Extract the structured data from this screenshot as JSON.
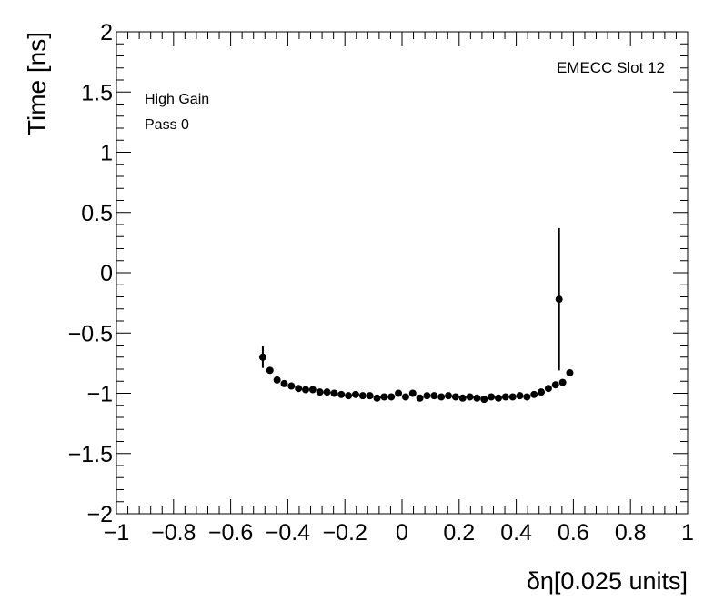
{
  "chart_data": {
    "type": "scatter",
    "xlabel": "δη[0.025 units]",
    "ylabel": "Time [ns]",
    "xlim": [
      -1,
      1
    ],
    "ylim": [
      -2,
      2
    ],
    "x_ticks": [
      "−1",
      "−0.8",
      "−0.6",
      "−0.4",
      "−0.2",
      "0",
      "0.2",
      "0.4",
      "0.6",
      "0.8",
      "1"
    ],
    "y_ticks": [
      "−2",
      "−1.5",
      "−1",
      "−0.5",
      "0",
      "0.5",
      "1",
      "1.5",
      "2"
    ],
    "annotations": {
      "slot": "EMECC Slot 12",
      "gain": "High Gain",
      "pass": "Pass 0"
    },
    "grid": false,
    "marker_color": "#000000",
    "points": [
      {
        "x": -0.4875,
        "y": -0.7,
        "err": 0.09
      },
      {
        "x": -0.4625,
        "y": -0.81,
        "err": 0.02
      },
      {
        "x": -0.4375,
        "y": -0.89,
        "err": 0.02
      },
      {
        "x": -0.4125,
        "y": -0.92,
        "err": 0.02
      },
      {
        "x": -0.3875,
        "y": -0.94,
        "err": 0.02
      },
      {
        "x": -0.3625,
        "y": -0.96,
        "err": 0.02
      },
      {
        "x": -0.3375,
        "y": -0.97,
        "err": 0.02
      },
      {
        "x": -0.3125,
        "y": -0.97,
        "err": 0.02
      },
      {
        "x": -0.2875,
        "y": -0.99,
        "err": 0.02
      },
      {
        "x": -0.2625,
        "y": -0.99,
        "err": 0.02
      },
      {
        "x": -0.2375,
        "y": -1.0,
        "err": 0.02
      },
      {
        "x": -0.2125,
        "y": -1.01,
        "err": 0.02
      },
      {
        "x": -0.1875,
        "y": -1.02,
        "err": 0.02
      },
      {
        "x": -0.1625,
        "y": -1.01,
        "err": 0.02
      },
      {
        "x": -0.1375,
        "y": -1.02,
        "err": 0.02
      },
      {
        "x": -0.1125,
        "y": -1.02,
        "err": 0.02
      },
      {
        "x": -0.0875,
        "y": -1.04,
        "err": 0.02
      },
      {
        "x": -0.0625,
        "y": -1.03,
        "err": 0.02
      },
      {
        "x": -0.0375,
        "y": -1.03,
        "err": 0.02
      },
      {
        "x": -0.0125,
        "y": -1.0,
        "err": 0.02
      },
      {
        "x": 0.0125,
        "y": -1.03,
        "err": 0.02
      },
      {
        "x": 0.0375,
        "y": -1.0,
        "err": 0.02
      },
      {
        "x": 0.0625,
        "y": -1.04,
        "err": 0.02
      },
      {
        "x": 0.0875,
        "y": -1.02,
        "err": 0.02
      },
      {
        "x": 0.1125,
        "y": -1.02,
        "err": 0.02
      },
      {
        "x": 0.1375,
        "y": -1.03,
        "err": 0.02
      },
      {
        "x": 0.1625,
        "y": -1.02,
        "err": 0.02
      },
      {
        "x": 0.1875,
        "y": -1.03,
        "err": 0.02
      },
      {
        "x": 0.2125,
        "y": -1.04,
        "err": 0.02
      },
      {
        "x": 0.2375,
        "y": -1.03,
        "err": 0.02
      },
      {
        "x": 0.2625,
        "y": -1.04,
        "err": 0.02
      },
      {
        "x": 0.2875,
        "y": -1.05,
        "err": 0.02
      },
      {
        "x": 0.3125,
        "y": -1.03,
        "err": 0.02
      },
      {
        "x": 0.3375,
        "y": -1.04,
        "err": 0.02
      },
      {
        "x": 0.3625,
        "y": -1.03,
        "err": 0.02
      },
      {
        "x": 0.3875,
        "y": -1.03,
        "err": 0.02
      },
      {
        "x": 0.4125,
        "y": -1.02,
        "err": 0.02
      },
      {
        "x": 0.4375,
        "y": -1.03,
        "err": 0.02
      },
      {
        "x": 0.4625,
        "y": -1.01,
        "err": 0.02
      },
      {
        "x": 0.4875,
        "y": -0.99,
        "err": 0.02
      },
      {
        "x": 0.5125,
        "y": -0.96,
        "err": 0.02
      },
      {
        "x": 0.5375,
        "y": -0.93,
        "err": 0.02
      },
      {
        "x": 0.5625,
        "y": -0.91,
        "err": 0.02
      },
      {
        "x": 0.5875,
        "y": -0.83,
        "err": 0.02
      },
      {
        "x": 0.55,
        "y": -0.22,
        "err": 0.59
      }
    ]
  }
}
